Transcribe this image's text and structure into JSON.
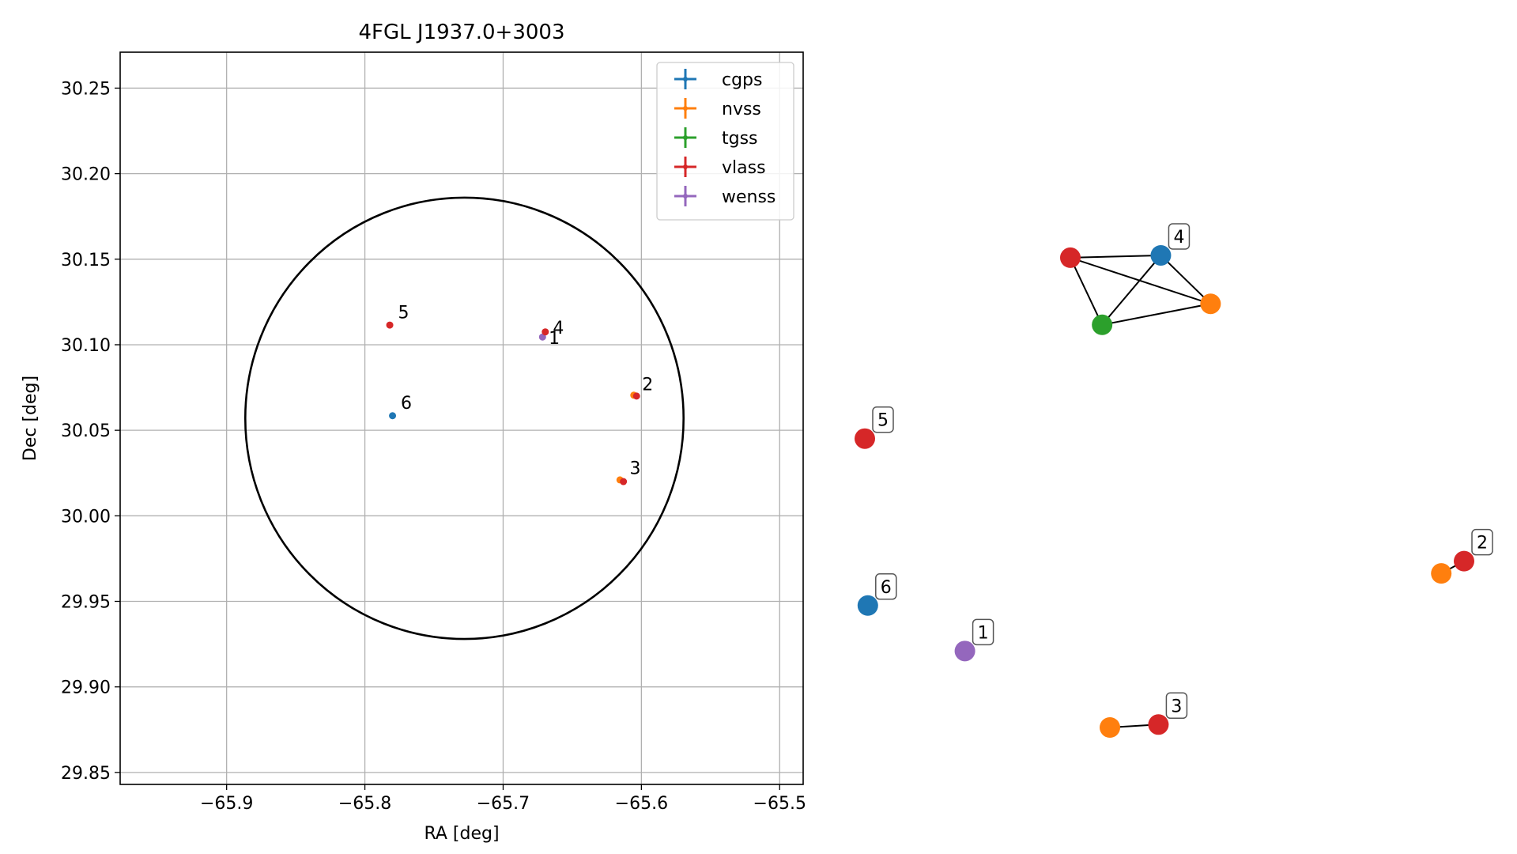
{
  "colors": {
    "cgps": "#1f77b4",
    "nvss": "#ff7f0e",
    "tgss": "#2ca02c",
    "vlass": "#d62728",
    "wenss": "#9467bd",
    "grid": "#b0b0b0",
    "ellipse": "#000000"
  },
  "chart_data": [
    {
      "type": "scatter",
      "title": "4FGL J1937.0+3003",
      "xlabel": "RA [deg]",
      "ylabel": "Dec [deg]",
      "xlim": [
        -65.977,
        -65.483
      ],
      "ylim": [
        29.843,
        30.271
      ],
      "xticks": [
        -65.9,
        -65.8,
        -65.7,
        -65.6,
        -65.5
      ],
      "xtick_labels": [
        "−65.9",
        "−65.8",
        "−65.7",
        "−65.6",
        "−65.5"
      ],
      "yticks": [
        29.85,
        29.9,
        29.95,
        30.0,
        30.05,
        30.1,
        30.15,
        30.2,
        30.25
      ],
      "ytick_labels": [
        "29.85",
        "29.90",
        "29.95",
        "30.00",
        "30.05",
        "30.10",
        "30.15",
        "30.20",
        "30.25"
      ],
      "grid": true,
      "legend_position": "upper-right",
      "legend": [
        "cgps",
        "nvss",
        "tgss",
        "vlass",
        "wenss"
      ],
      "ellipse": {
        "center": [
          -65.728,
          30.057
        ],
        "ra_halfwidth": 0.1585,
        "dec_halfheight": 0.129
      },
      "points": [
        {
          "survey": "wenss",
          "ra": -65.6715,
          "dec": 30.1045
        },
        {
          "survey": "vlass",
          "ra": -65.6695,
          "dec": 30.1075
        },
        {
          "survey": "nvss",
          "ra": -65.6055,
          "dec": 30.0705
        },
        {
          "survey": "vlass",
          "ra": -65.6035,
          "dec": 30.07
        },
        {
          "survey": "nvss",
          "ra": -65.6155,
          "dec": 30.021
        },
        {
          "survey": "vlass",
          "ra": -65.613,
          "dec": 30.02
        },
        {
          "survey": "vlass",
          "ra": -65.782,
          "dec": 30.1115
        },
        {
          "survey": "cgps",
          "ra": -65.78,
          "dec": 30.0585
        }
      ],
      "point_labels": [
        {
          "text": "1",
          "ra": -65.667,
          "dec": 30.1005
        },
        {
          "text": "4",
          "ra": -65.664,
          "dec": 30.1065
        },
        {
          "text": "2",
          "ra": -65.5995,
          "dec": 30.0735
        },
        {
          "text": "3",
          "ra": -65.6085,
          "dec": 30.0245
        },
        {
          "text": "5",
          "ra": -65.776,
          "dec": 30.1155
        },
        {
          "text": "6",
          "ra": -65.774,
          "dec": 30.0625
        }
      ]
    },
    {
      "type": "network",
      "nodes": [
        {
          "id": "4-vlass",
          "survey": "vlass",
          "x": 0.343,
          "y": 0.805
        },
        {
          "id": "4-cgps",
          "survey": "cgps",
          "x": 0.494,
          "y": 0.809
        },
        {
          "id": "4-nvss",
          "survey": "nvss",
          "x": 0.577,
          "y": 0.726
        },
        {
          "id": "4-tgss",
          "survey": "tgss",
          "x": 0.396,
          "y": 0.69
        },
        {
          "id": "5-vlass",
          "survey": "vlass",
          "x": 0.0,
          "y": 0.495
        },
        {
          "id": "2-vlass",
          "survey": "vlass",
          "x": 1.0,
          "y": 0.285
        },
        {
          "id": "2-nvss",
          "survey": "nvss",
          "x": 0.962,
          "y": 0.264
        },
        {
          "id": "6-cgps",
          "survey": "cgps",
          "x": 0.005,
          "y": 0.209
        },
        {
          "id": "1-wenss",
          "survey": "wenss",
          "x": 0.167,
          "y": 0.131
        },
        {
          "id": "3-nvss",
          "survey": "nvss",
          "x": 0.409,
          "y": 0.0
        },
        {
          "id": "3-vlass",
          "survey": "vlass",
          "x": 0.49,
          "y": 0.005
        }
      ],
      "edges": [
        [
          "4-vlass",
          "4-cgps"
        ],
        [
          "4-vlass",
          "4-nvss"
        ],
        [
          "4-vlass",
          "4-tgss"
        ],
        [
          "4-cgps",
          "4-nvss"
        ],
        [
          "4-cgps",
          "4-tgss"
        ],
        [
          "4-nvss",
          "4-tgss"
        ],
        [
          "2-vlass",
          "2-nvss"
        ],
        [
          "3-nvss",
          "3-vlass"
        ]
      ],
      "labels": [
        {
          "text": "4",
          "node": "4-cgps"
        },
        {
          "text": "5",
          "node": "5-vlass"
        },
        {
          "text": "2",
          "node": "2-vlass"
        },
        {
          "text": "6",
          "node": "6-cgps"
        },
        {
          "text": "1",
          "node": "1-wenss"
        },
        {
          "text": "3",
          "node": "3-vlass"
        }
      ]
    }
  ]
}
